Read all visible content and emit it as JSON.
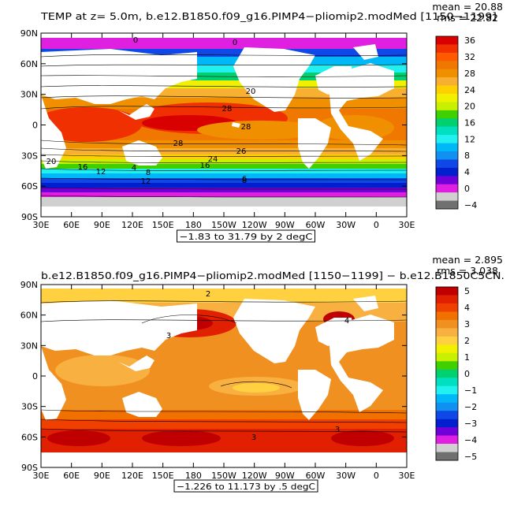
{
  "chart_data": [
    {
      "type": "heatmap",
      "title": "TEMP at z=    5.0m, b.e12.B1850.f09_g16.PIMP4−pliomip2.modMed [1150−1199]",
      "mean_label": "mean = 20.88",
      "rms_label": "rms = 22.82",
      "contour_info": "−1.83 to 31.79 by 2 degC",
      "x_ticks": [
        "30E",
        "60E",
        "90E",
        "120E",
        "150E",
        "180",
        "150W",
        "120W",
        "90W",
        "60W",
        "30W",
        "0",
        "30E"
      ],
      "y_ticks": [
        "90N",
        "60N",
        "30N",
        "0",
        "30S",
        "60S",
        "90S"
      ],
      "colorbar_labels": [
        "36",
        "32",
        "28",
        "24",
        "20",
        "16",
        "12",
        "8",
        "4",
        "0",
        "−4"
      ],
      "colorbar_colors": [
        "#d80000",
        "#f03000",
        "#ff5a00",
        "#f07800",
        "#f09000",
        "#f8b030",
        "#ffd000",
        "#f0f000",
        "#c8f000",
        "#40d000",
        "#00d070",
        "#00e0c0",
        "#20f0f0",
        "#00b8f8",
        "#1090f0",
        "#1048e8",
        "#0020d0",
        "#7000d8",
        "#e020e0",
        "#d0d0d0",
        "#707070"
      ],
      "contour_labels": [
        "0",
        "0",
        "20",
        "28",
        "28",
        "28",
        "26",
        "24",
        "20",
        "16",
        "12",
        "8",
        "4",
        "16",
        "12",
        "8",
        "6"
      ]
    },
    {
      "type": "heatmap",
      "title": "b.e12.B1850.f09_g16.PIMP4−pliomip2.modMed [1150−1199] − b.e12.B1850C5CN.",
      "mean_label": "mean = 2.895",
      "rms_label": "rms = 3.038",
      "contour_info": "−1.226 to 11.173 by .5 degC",
      "x_ticks": [
        "30E",
        "60E",
        "90E",
        "120E",
        "150E",
        "180",
        "150W",
        "120W",
        "90W",
        "60W",
        "30W",
        "0",
        "30E"
      ],
      "y_ticks": [
        "90N",
        "60N",
        "30N",
        "0",
        "30S",
        "60S",
        "90S"
      ],
      "colorbar_labels": [
        "5",
        "4",
        "3",
        "2",
        "1",
        "0",
        "−1",
        "−2",
        "−3",
        "−4",
        "−5"
      ],
      "colorbar_colors": [
        "#c00000",
        "#e02000",
        "#f04000",
        "#f07000",
        "#f09020",
        "#f8b040",
        "#ffd040",
        "#f0f000",
        "#c8f000",
        "#40d000",
        "#00d070",
        "#00e0c0",
        "#20f0f0",
        "#00b8f8",
        "#1090f0",
        "#1048e8",
        "#0020d0",
        "#7000d8",
        "#e020e0",
        "#d0d0d0",
        "#707070"
      ],
      "contour_labels": [
        "2",
        "3",
        "3",
        "3",
        "4"
      ]
    }
  ]
}
